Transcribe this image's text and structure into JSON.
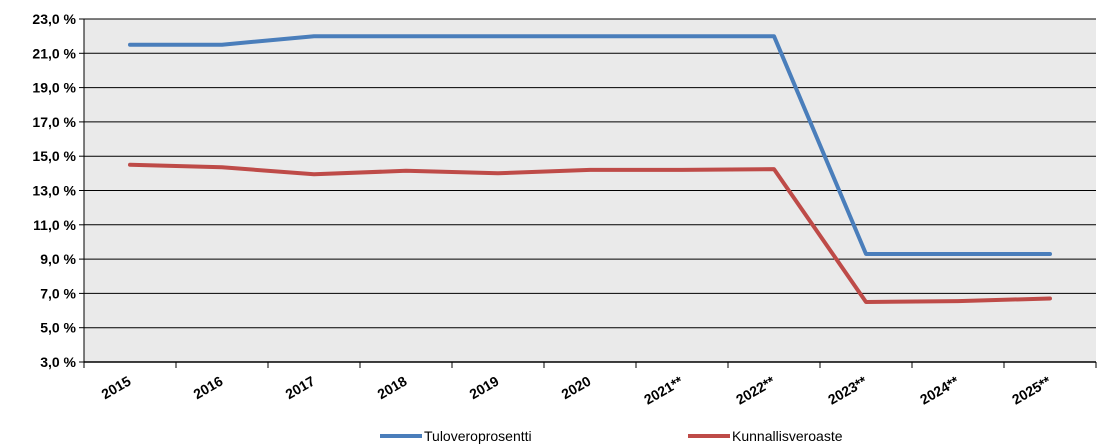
{
  "chart_data": {
    "type": "line",
    "title": "",
    "xlabel": "",
    "ylabel": "",
    "categories": [
      "2015",
      "2016",
      "2017",
      "2018",
      "2019",
      "2020",
      "2021**",
      "2022**",
      "2023**",
      "2024**",
      "2025**"
    ],
    "ylim": [
      3.0,
      23.0
    ],
    "y_ticks": [
      "3,0 %",
      "5,0 %",
      "7,0 %",
      "9,0 %",
      "11,0 %",
      "13,0 %",
      "15,0 %",
      "17,0 %",
      "19,0 %",
      "21,0 %",
      "23,0 %"
    ],
    "y_tick_values": [
      3,
      5,
      7,
      9,
      11,
      13,
      15,
      17,
      19,
      21,
      23
    ],
    "grid": true,
    "legend_position": "bottom",
    "series": [
      {
        "name": "Tuloveroprosentti",
        "color": "#4a7ebb",
        "values": [
          21.5,
          21.5,
          22.0,
          22.0,
          22.0,
          22.0,
          22.0,
          22.0,
          9.3,
          9.3,
          9.3
        ]
      },
      {
        "name": "Kunnallisveroaste",
        "color": "#be4b48",
        "values": [
          14.5,
          14.35,
          13.95,
          14.15,
          14.0,
          14.2,
          14.2,
          14.25,
          6.5,
          6.55,
          6.7
        ]
      }
    ],
    "plot_background": "#eaeaea",
    "grid_color": "#000000"
  }
}
